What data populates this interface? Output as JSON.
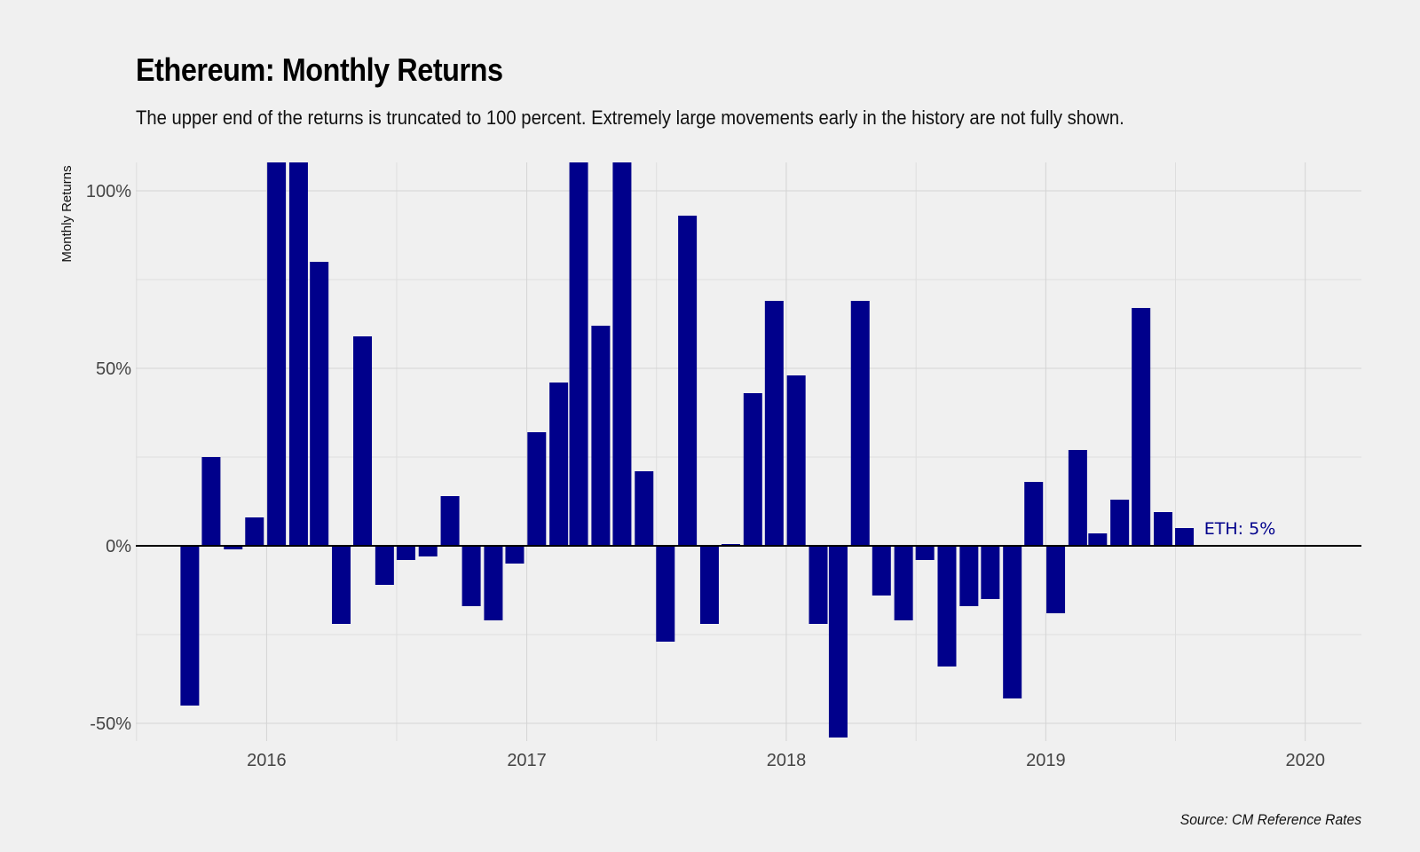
{
  "title": "Ethereum: Monthly Returns",
  "subtitle": "The upper end of the returns is truncated to 100 percent. Extremely large movements early in the history are not fully shown.",
  "caption": "Source: CM Reference Rates",
  "colors": {
    "background": "#f0f0f0",
    "bar": "#00008b",
    "grid": "#d4d4d4",
    "zero_line": "#000000",
    "annotation": "#00008b"
  },
  "chart_data": {
    "type": "bar",
    "title": "Ethereum: Monthly Returns",
    "subtitle": "The upper end of the returns is truncated to 100 percent. Extremely large movements early in the history are not fully shown.",
    "xlabel": "",
    "ylabel": "Monthly Returns",
    "ylim": [
      -55,
      108
    ],
    "y_ticks": [
      -50,
      0,
      50,
      100
    ],
    "y_tick_labels": [
      "-50%",
      "0%",
      "50%",
      "100%"
    ],
    "x_ticks": [
      "2016-01-01",
      "2017-01-01",
      "2018-01-01",
      "2019-01-01",
      "2020-01-01"
    ],
    "x_tick_labels": [
      "2016",
      "2017",
      "2018",
      "2019",
      "2020"
    ],
    "x_range": [
      "2015-07-01",
      "2020-03-20"
    ],
    "grid": true,
    "legend": "none",
    "categories": [
      "2015-09",
      "2015-10",
      "2015-11",
      "2015-12",
      "2016-01",
      "2016-02",
      "2016-03",
      "2016-04",
      "2016-05",
      "2016-06",
      "2016-07",
      "2016-08",
      "2016-09",
      "2016-10",
      "2016-11",
      "2016-12",
      "2017-01",
      "2017-02",
      "2017-03",
      "2017-04",
      "2017-05",
      "2017-06",
      "2017-07",
      "2017-08",
      "2017-09",
      "2017-10",
      "2017-11",
      "2017-12",
      "2018-01",
      "2018-02",
      "2018-03",
      "2018-04",
      "2018-05",
      "2018-06",
      "2018-07",
      "2018-08",
      "2018-09",
      "2018-10",
      "2018-11",
      "2018-12",
      "2019-01",
      "2019-02",
      "2019-03",
      "2019-04",
      "2019-05",
      "2019-06",
      "2019-07"
    ],
    "values": [
      -45,
      25,
      -1,
      8,
      108,
      108,
      80,
      -22,
      59,
      -11,
      -4,
      -3,
      14,
      -17,
      -21,
      -5,
      32,
      46,
      108,
      62,
      108,
      21,
      -27,
      93,
      -22,
      0.5,
      43,
      69,
      48,
      -22,
      -54,
      69,
      -14,
      -21,
      -4,
      -34,
      -17,
      -15,
      -43,
      18,
      -19,
      27,
      3.5,
      13,
      67,
      9.5,
      5
    ],
    "annotations": [
      {
        "text": "ETH: 5%",
        "x": "2019-10-01",
        "y": 5
      }
    ]
  }
}
